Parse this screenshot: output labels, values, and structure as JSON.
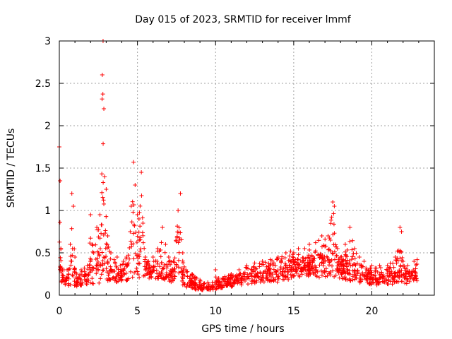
{
  "chart_data": {
    "type": "scatter",
    "title": "Day 015 of 2023, SRMTID for receiver lmmf",
    "xlabel": "GPS time / hours",
    "ylabel": "SRMTID / TECUs",
    "xlim": [
      0,
      24
    ],
    "ylim": [
      0,
      3
    ],
    "xticks": [
      0,
      5,
      10,
      15,
      20
    ],
    "xtick_labels": [
      "0",
      "5",
      "10",
      "15",
      "20"
    ],
    "yticks": [
      0,
      0.5,
      1,
      1.5,
      2,
      2.5,
      3
    ],
    "ytick_labels": [
      "0",
      "0.5",
      "1",
      "1.5",
      "2",
      "2.5",
      "3"
    ],
    "grid": true,
    "marker": "+",
    "color": "#ff0000",
    "series": [
      {
        "name": "SRMTID",
        "envelope_hours": [
          0.0,
          0.05,
          0.1,
          0.2,
          0.3,
          0.5,
          0.7,
          0.8,
          0.9,
          1.0,
          1.1,
          1.2,
          1.4,
          1.6,
          1.8,
          2.0,
          2.2,
          2.4,
          2.6,
          2.75,
          2.8,
          2.85,
          2.9,
          3.0,
          3.1,
          3.3,
          3.5,
          3.7,
          3.9,
          4.1,
          4.3,
          4.6,
          4.75,
          4.85,
          5.0,
          5.1,
          5.25,
          5.35,
          5.5,
          5.7,
          6.0,
          6.3,
          6.6,
          6.8,
          7.0,
          7.3,
          7.6,
          7.75,
          7.9,
          8.1,
          8.5,
          9.0,
          9.5,
          9.8,
          10.0,
          10.2,
          10.6,
          11.0,
          11.5,
          12.0,
          12.5,
          13.0,
          13.5,
          14.0,
          14.5,
          14.8,
          15.0,
          15.3,
          15.7,
          16.0,
          16.4,
          16.8,
          17.2,
          17.5,
          17.6,
          17.8,
          18.0,
          18.3,
          18.6,
          18.9,
          19.2,
          19.5,
          20.0,
          20.5,
          21.0,
          21.5,
          21.8,
          21.9,
          22.0,
          22.3,
          22.7,
          22.9
        ],
        "envelope_values": [
          1.75,
          1.35,
          0.55,
          0.3,
          0.3,
          0.3,
          0.6,
          1.2,
          1.05,
          0.45,
          0.25,
          0.2,
          0.3,
          0.32,
          0.35,
          0.95,
          0.5,
          0.8,
          0.95,
          2.6,
          3.0,
          2.2,
          1.4,
          1.25,
          0.7,
          0.5,
          0.42,
          0.45,
          0.35,
          0.4,
          0.45,
          1.05,
          1.57,
          1.3,
          0.95,
          0.9,
          1.45,
          0.85,
          0.45,
          0.4,
          0.45,
          0.55,
          0.8,
          0.6,
          0.45,
          0.4,
          1.0,
          1.2,
          0.5,
          0.3,
          0.25,
          0.18,
          0.15,
          0.15,
          0.3,
          0.2,
          0.22,
          0.25,
          0.3,
          0.35,
          0.38,
          0.4,
          0.42,
          0.45,
          0.5,
          0.52,
          0.5,
          0.55,
          0.55,
          0.6,
          0.62,
          0.7,
          0.7,
          1.1,
          1.05,
          0.55,
          0.45,
          0.6,
          0.8,
          0.55,
          0.45,
          0.4,
          0.35,
          0.35,
          0.35,
          0.45,
          0.8,
          0.75,
          0.4,
          0.35,
          0.4,
          0.42
        ],
        "baseline_hours": [
          0,
          1,
          2,
          3,
          4,
          5,
          6,
          7,
          8,
          9,
          10,
          11,
          12,
          13,
          14,
          15,
          16,
          17,
          18,
          19,
          20,
          21,
          22,
          23
        ],
        "baseline_values": [
          0.1,
          0.1,
          0.12,
          0.14,
          0.15,
          0.2,
          0.2,
          0.16,
          0.1,
          0.05,
          0.07,
          0.1,
          0.13,
          0.15,
          0.15,
          0.2,
          0.22,
          0.2,
          0.2,
          0.15,
          0.12,
          0.12,
          0.12,
          0.15
        ]
      }
    ]
  }
}
